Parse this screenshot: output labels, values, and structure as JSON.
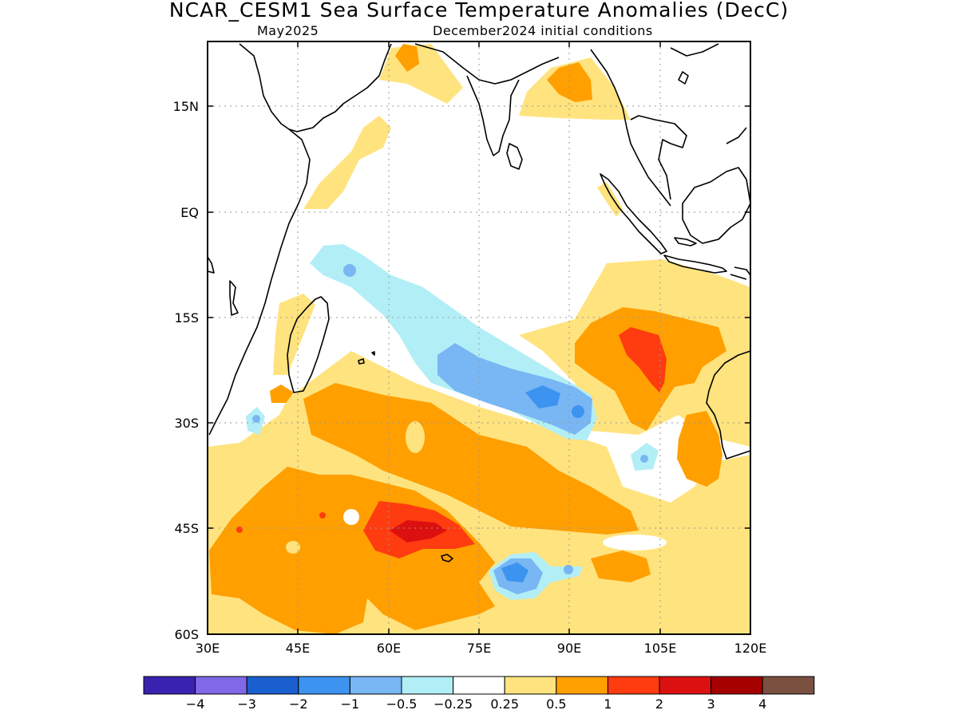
{
  "header": {
    "title": "NCAR_CESM1 Sea Surface Temperature Anomalies (DecC)",
    "subtitle_left": "May2025",
    "subtitle_right": "December2024 initial conditions"
  },
  "map": {
    "x_ticks": [
      "30E",
      "45E",
      "60E",
      "75E",
      "90E",
      "105E",
      "120E"
    ],
    "y_ticks": [
      "15N",
      "EQ",
      "15S",
      "30S",
      "45S",
      "60S"
    ]
  },
  "colorbar": {
    "colors": [
      "#3a22b0",
      "#8068e8",
      "#1a5fd0",
      "#3d93f0",
      "#78b6f4",
      "#b2eef6",
      "#ffffff",
      "#ffe37e",
      "#ff9f00",
      "#ff3b10",
      "#dd1010",
      "#a40000",
      "#7a5040"
    ],
    "labels": [
      "−4",
      "−3",
      "−2",
      "−1",
      "−0.5",
      "−0.25",
      "0.25",
      "0.5",
      "1",
      "2",
      "3",
      "4"
    ]
  }
}
